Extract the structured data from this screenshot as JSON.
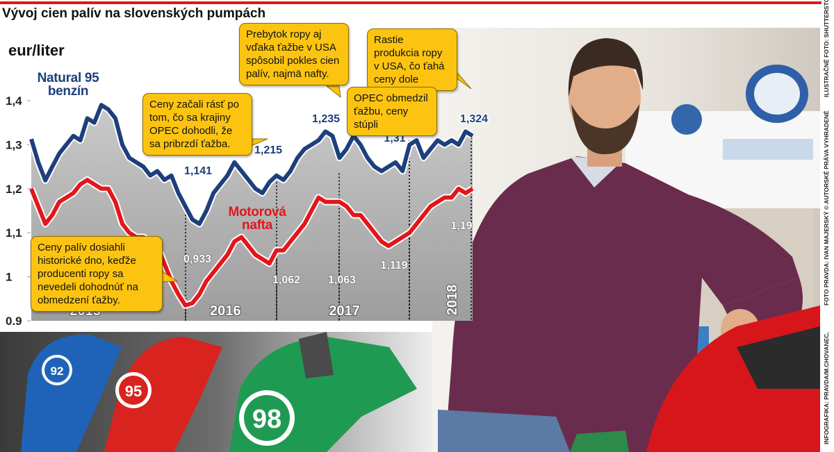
{
  "header": {
    "title": "Vývoj cien palív na slovenských pumpách"
  },
  "chart_data": {
    "type": "line",
    "y_label": "eur/liter",
    "ylim": [
      0.9,
      1.4
    ],
    "yticks": [
      0.9,
      1,
      {
        "value": 1.1,
        "label": "1,1"
      },
      {
        "value": 1.2,
        "label": "1,2"
      },
      {
        "value": 1.3,
        "label": "1,3"
      },
      {
        "value": 1.4,
        "label": "1,4"
      }
    ],
    "categories": [
      null,
      null,
      null,
      null,
      null,
      null,
      null,
      null,
      "2015",
      null,
      null,
      null,
      null,
      null,
      null,
      null,
      null,
      null,
      null,
      null,
      null,
      null,
      null,
      null,
      null,
      null,
      null,
      null,
      "2016",
      null,
      null,
      null,
      null,
      null,
      null,
      null,
      null,
      null,
      null,
      null,
      null,
      null,
      null,
      null,
      null,
      "2017",
      null,
      null,
      null,
      null,
      null,
      null,
      null,
      null,
      null,
      null,
      null,
      null,
      null,
      null,
      "2018",
      null,
      null,
      null
    ],
    "series": [
      {
        "name": "Natural 95 benzín",
        "color": "#1d3f7c",
        "values": [
          1.313,
          1.26,
          1.219,
          1.25,
          1.28,
          1.3,
          1.32,
          1.31,
          1.36,
          1.35,
          1.39,
          1.38,
          1.36,
          1.3,
          1.27,
          1.26,
          1.25,
          1.23,
          1.24,
          1.22,
          1.23,
          1.19,
          1.16,
          1.13,
          1.12,
          1.15,
          1.19,
          1.21,
          1.23,
          1.26,
          1.24,
          1.22,
          1.2,
          1.19,
          1.215,
          1.23,
          1.22,
          1.24,
          1.27,
          1.29,
          1.3,
          1.31,
          1.33,
          1.32,
          1.27,
          1.29,
          1.32,
          1.3,
          1.27,
          1.25,
          1.24,
          1.25,
          1.26,
          1.24,
          1.3,
          1.31,
          1.27,
          1.29,
          1.31,
          1.3,
          1.31,
          1.3,
          1.33,
          1.32
        ]
      },
      {
        "name": "Motorová nafta",
        "color": "#e3161b",
        "values": [
          1.2,
          1.16,
          1.12,
          1.14,
          1.17,
          1.18,
          1.19,
          1.21,
          1.22,
          1.21,
          1.2,
          1.2,
          1.17,
          1.12,
          1.1,
          1.09,
          1.09,
          1.08,
          1.07,
          1.03,
          0.99,
          0.96,
          0.935,
          0.94,
          0.96,
          0.99,
          1.01,
          1.03,
          1.05,
          1.08,
          1.09,
          1.07,
          1.05,
          1.04,
          1.03,
          1.06,
          1.06,
          1.08,
          1.1,
          1.12,
          1.15,
          1.18,
          1.17,
          1.17,
          1.17,
          1.16,
          1.14,
          1.14,
          1.12,
          1.1,
          1.08,
          1.07,
          1.08,
          1.09,
          1.1,
          1.12,
          1.14,
          1.16,
          1.17,
          1.18,
          1.18,
          1.2,
          1.19,
          1.2
        ]
      }
    ],
    "annotations": [
      {
        "value": 1.141,
        "label": "1,141"
      },
      {
        "value": 0.933,
        "label": "0,933"
      },
      {
        "value": 1.215,
        "label": "1,215"
      },
      {
        "value": 1.062,
        "label": "1,062"
      },
      {
        "value": 1.235,
        "label": "1,235"
      },
      {
        "value": 1.063,
        "label": "1,063"
      },
      {
        "value": 1.31,
        "label": "1,31"
      },
      {
        "value": 1.119,
        "label": "1,119"
      },
      {
        "value": 1.324,
        "label": "1,324"
      },
      {
        "value": 1.19,
        "label": "1,19"
      }
    ],
    "callouts": [
      "Ceny začali rásť po tom, čo sa krajiny OPEC dohodli, že sa pribrzdí ťažba.",
      "Prebytok ropy aj vďaka ťažbe v USA spôsobil pokles cien palív, najmä nafty.",
      "Rastie produkcia ropy v USA, čo ťahá ceny dole",
      "OPEC obmedzil ťažbu, ceny stúpli",
      "Ceny palív dosiahli historické dno, keďže producenti ropy sa nevedeli dohodnúť na obmedzení ťažby."
    ]
  },
  "photo": {
    "nozzles": [
      "92",
      "95",
      "98"
    ]
  },
  "credits": [
    "INFOGRAFIKA: PRAVDA/M.CHOVANEC,",
    "FOTO PRAVDA: IVAN MAJERSKÝ © AUTORSKÉ PRÁVA VYHRADENÉ",
    "ILUSTRAČNÉ FOTO: SHUTTERSTOCK"
  ]
}
